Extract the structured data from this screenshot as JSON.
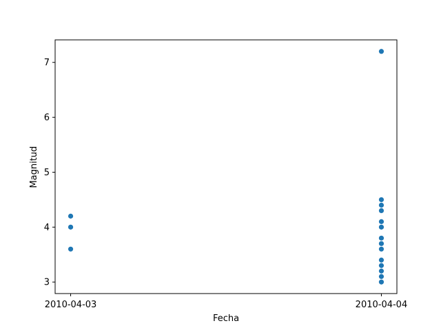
{
  "chart_data": {
    "type": "scatter",
    "title": "",
    "xlabel": "Fecha",
    "ylabel": "Magnitud",
    "x_categories": [
      "2010-04-03",
      "2010-04-04"
    ],
    "x_ticks": [
      "2010-04-03",
      "2010-04-04"
    ],
    "xlim": [
      "2010-04-02T22:48",
      "2010-04-04T01:12"
    ],
    "ylim": [
      2.79,
      7.41
    ],
    "y_ticks": [
      3,
      4,
      5,
      6,
      7
    ],
    "grid": false,
    "legend": "none",
    "marker_color": "#1f77b4",
    "points": [
      {
        "x": "2010-04-03",
        "y": 4.2
      },
      {
        "x": "2010-04-03",
        "y": 4.0
      },
      {
        "x": "2010-04-03",
        "y": 3.6
      },
      {
        "x": "2010-04-04",
        "y": 7.2
      },
      {
        "x": "2010-04-04",
        "y": 4.5
      },
      {
        "x": "2010-04-04",
        "y": 4.4
      },
      {
        "x": "2010-04-04",
        "y": 4.3
      },
      {
        "x": "2010-04-04",
        "y": 4.1
      },
      {
        "x": "2010-04-04",
        "y": 4.0
      },
      {
        "x": "2010-04-04",
        "y": 3.8
      },
      {
        "x": "2010-04-04",
        "y": 3.7
      },
      {
        "x": "2010-04-04",
        "y": 3.6
      },
      {
        "x": "2010-04-04",
        "y": 3.4
      },
      {
        "x": "2010-04-04",
        "y": 3.3
      },
      {
        "x": "2010-04-04",
        "y": 3.2
      },
      {
        "x": "2010-04-04",
        "y": 3.1
      },
      {
        "x": "2010-04-04",
        "y": 3.0
      }
    ]
  }
}
